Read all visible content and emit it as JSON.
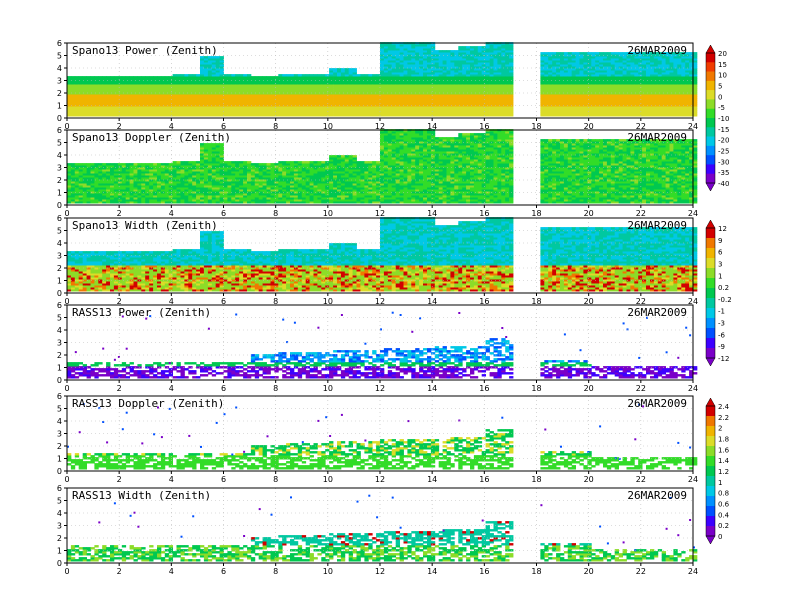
{
  "date_label": "26MAR2009",
  "chart_data": [
    {
      "type": "heatmap",
      "title": "Spano13 Power (Zenith)",
      "xlim": [
        0,
        24
      ],
      "ylim": [
        0,
        6
      ],
      "x_ticks": [
        "0",
        "2",
        "4",
        "6",
        "8",
        "10",
        "12",
        "14",
        "16",
        "18",
        "20",
        "22",
        "24"
      ],
      "y_ticks": [
        "0",
        "1",
        "2",
        "3",
        "4",
        "5",
        "6"
      ],
      "colorbar": {
        "labels": [
          "20",
          "15",
          "10",
          "5",
          "0",
          "-5",
          "-10",
          "-15",
          "-20",
          "-25",
          "-30",
          "-35",
          "-40"
        ]
      },
      "coverage": {
        "gaps": [
          [
            17.1,
            18.1
          ]
        ],
        "top_km_by_hour": [
          3.3,
          3.3,
          3.3,
          3.3,
          3.4,
          4.8,
          3.4,
          3.3,
          3.5,
          3.4,
          3.9,
          3.4,
          6.0,
          6.0,
          5.4,
          5.6,
          6.0,
          0,
          5.2,
          5.2,
          5.2,
          5.2,
          5.2,
          5.2
        ]
      },
      "palette": "power"
    },
    {
      "type": "heatmap",
      "title": "Spano13 Doppler (Zenith)",
      "xlim": [
        0,
        24
      ],
      "ylim": [
        0,
        6
      ],
      "x_ticks": [
        "0",
        "2",
        "4",
        "6",
        "8",
        "10",
        "12",
        "14",
        "16",
        "18",
        "20",
        "22",
        "24"
      ],
      "y_ticks": [
        "0",
        "1",
        "2",
        "3",
        "4",
        "5",
        "6"
      ],
      "colorbar": null,
      "coverage": {
        "gaps": [
          [
            17.1,
            18.1
          ]
        ],
        "top_km_by_hour": [
          3.3,
          3.3,
          3.3,
          3.3,
          3.4,
          4.8,
          3.4,
          3.3,
          3.5,
          3.4,
          3.9,
          3.4,
          6.0,
          6.0,
          5.4,
          5.6,
          6.0,
          0,
          5.2,
          5.2,
          5.2,
          5.2,
          5.2,
          5.2
        ]
      },
      "palette": "doppler"
    },
    {
      "type": "heatmap",
      "title": "Spano13 Width (Zenith)",
      "xlim": [
        0,
        24
      ],
      "ylim": [
        0,
        6
      ],
      "x_ticks": [
        "0",
        "2",
        "4",
        "6",
        "8",
        "10",
        "12",
        "14",
        "16",
        "18",
        "20",
        "22",
        "24"
      ],
      "y_ticks": [
        "0",
        "1",
        "2",
        "3",
        "4",
        "5",
        "6"
      ],
      "colorbar": {
        "labels": [
          "12",
          "9",
          "6",
          "3",
          "1",
          "0.2",
          "-0.2",
          "-1",
          "-3",
          "-6",
          "-9",
          "-12"
        ]
      },
      "coverage": {
        "gaps": [
          [
            17.1,
            18.1
          ]
        ],
        "top_km_by_hour": [
          3.3,
          3.3,
          3.3,
          3.3,
          3.4,
          4.8,
          3.4,
          3.3,
          3.5,
          3.4,
          3.9,
          3.4,
          6.0,
          6.0,
          5.4,
          5.6,
          6.0,
          0,
          5.2,
          5.2,
          5.2,
          5.2,
          5.2,
          5.2
        ]
      },
      "palette": "width"
    },
    {
      "type": "heatmap",
      "title": "RASS13 Power (Zenith)",
      "xlim": [
        0,
        24
      ],
      "ylim": [
        0,
        6
      ],
      "x_ticks": [
        "0",
        "2",
        "4",
        "6",
        "8",
        "10",
        "12",
        "14",
        "16",
        "18",
        "20",
        "22",
        "24"
      ],
      "y_ticks": [
        "0",
        "1",
        "2",
        "3",
        "4",
        "5",
        "6"
      ],
      "colorbar": null,
      "coverage": {
        "gaps": [
          [
            17.1,
            18.1
          ]
        ],
        "top_km_by_hour": [
          1.3,
          1.3,
          1.3,
          1.3,
          1.3,
          1.3,
          1.3,
          2.0,
          2.1,
          2.2,
          2.3,
          2.3,
          2.4,
          2.5,
          2.6,
          2.7,
          3.2,
          0,
          1.5,
          1.5,
          1.0,
          1.0,
          1.0,
          1.0
        ]
      },
      "palette": "rass_power"
    },
    {
      "type": "heatmap",
      "title": "RASS13 Doppler (Zenith)",
      "xlim": [
        0,
        24
      ],
      "ylim": [
        0,
        6
      ],
      "x_ticks": [
        "0",
        "2",
        "4",
        "6",
        "8",
        "10",
        "12",
        "14",
        "16",
        "18",
        "20",
        "22",
        "24"
      ],
      "y_ticks": [
        "0",
        "1",
        "2",
        "3",
        "4",
        "5",
        "6"
      ],
      "colorbar": {
        "labels": [
          "2.4",
          "2.2",
          "2",
          "1.8",
          "1.6",
          "1.4",
          "1.2",
          "1",
          "0.8",
          "0.6",
          "0.4",
          "0.2",
          "0"
        ]
      },
      "coverage": {
        "gaps": [
          [
            17.1,
            18.1
          ]
        ],
        "top_km_by_hour": [
          1.3,
          1.3,
          1.3,
          1.3,
          1.3,
          1.3,
          1.3,
          2.0,
          2.1,
          2.2,
          2.3,
          2.3,
          2.4,
          2.5,
          2.6,
          2.7,
          3.2,
          0,
          1.5,
          1.5,
          1.0,
          1.0,
          1.0,
          1.0
        ]
      },
      "palette": "rass_doppler"
    },
    {
      "type": "heatmap",
      "title": "RASS13 Width (Zenith)",
      "xlim": [
        0,
        24
      ],
      "ylim": [
        0,
        6
      ],
      "x_ticks": [
        "0",
        "2",
        "4",
        "6",
        "8",
        "10",
        "12",
        "14",
        "16",
        "18",
        "20",
        "22",
        "24"
      ],
      "y_ticks": [
        "0",
        "1",
        "2",
        "3",
        "4",
        "5",
        "6"
      ],
      "colorbar": null,
      "coverage": {
        "gaps": [
          [
            17.1,
            18.1
          ]
        ],
        "top_km_by_hour": [
          1.3,
          1.3,
          1.3,
          1.3,
          1.3,
          1.3,
          1.3,
          2.0,
          2.1,
          2.2,
          2.3,
          2.3,
          2.4,
          2.5,
          2.6,
          2.7,
          3.2,
          0,
          1.5,
          1.5,
          1.0,
          1.0,
          1.0,
          1.0
        ]
      },
      "palette": "rass_width"
    }
  ],
  "colors": {
    "power": [
      "#7a00c8",
      "#3c00ff",
      "#0050ff",
      "#0090ff",
      "#00c8e6",
      "#00c8a0",
      "#00c850",
      "#32dc28",
      "#8cdc28",
      "#dcdc28",
      "#f0b400",
      "#f07800",
      "#f03c00",
      "#d20000"
    ],
    "width": [
      "#7a00c8",
      "#3c00ff",
      "#0050ff",
      "#0090ff",
      "#00c8e6",
      "#00c8a0",
      "#00c850",
      "#32dc28",
      "#8cdc28",
      "#dcdc28",
      "#f0b400",
      "#f07800",
      "#d20000"
    ],
    "rass": [
      "#7a00c8",
      "#3c00ff",
      "#0050ff",
      "#0090ff",
      "#00c8e6",
      "#00c8a0",
      "#00c850",
      "#32dc28",
      "#8cdc28",
      "#dcdc28",
      "#f0b400",
      "#f07800",
      "#d20000"
    ]
  }
}
